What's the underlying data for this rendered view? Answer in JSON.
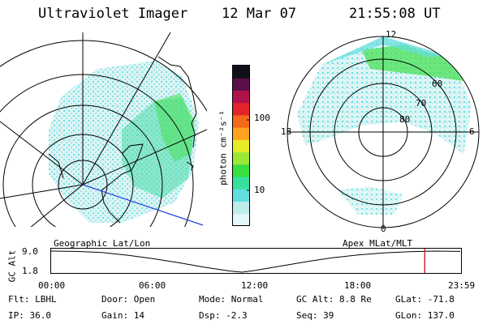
{
  "header": {
    "instrument": "Ultraviolet Imager",
    "date": "12 Mar 07",
    "time": "21:55:08 UT"
  },
  "maps": {
    "left_caption": "Geographic Lat/Lon",
    "right_caption": "Apex MLat/MLT",
    "mlt_labels": {
      "top": "12",
      "left": "18",
      "right": "6",
      "bottom": "0"
    },
    "mlat_labels": [
      "60",
      "70",
      "80"
    ]
  },
  "colorbar": {
    "unit_label": "photon cm⁻²s⁻¹",
    "ticks": [
      "100",
      "10"
    ],
    "scale": "log",
    "colors": [
      "#e6f7f7",
      "#c0ecec",
      "#62dede",
      "#38e0a0",
      "#36e040",
      "#9be836",
      "#e6ec26",
      "#ffa31e",
      "#f26a1a",
      "#e2242a",
      "#b0124a",
      "#5b0f48",
      "#101018"
    ]
  },
  "altitude_plot": {
    "ylabel": "GC Alt",
    "y_ticks": [
      "9.0",
      "1.8"
    ],
    "x_ticks": [
      "00:00",
      "06:00",
      "12:00",
      "18:00",
      "23:59"
    ],
    "curve": [
      {
        "hour": 0.0,
        "alt": 9.0
      },
      {
        "hour": 1.5,
        "alt": 8.9
      },
      {
        "hour": 3.0,
        "alt": 8.5
      },
      {
        "hour": 4.5,
        "alt": 7.6
      },
      {
        "hour": 6.0,
        "alt": 6.4
      },
      {
        "hour": 7.5,
        "alt": 5.0
      },
      {
        "hour": 9.0,
        "alt": 3.5
      },
      {
        "hour": 10.5,
        "alt": 2.2
      },
      {
        "hour": 11.2,
        "alt": 1.8
      },
      {
        "hour": 12.0,
        "alt": 2.4
      },
      {
        "hour": 13.5,
        "alt": 3.9
      },
      {
        "hour": 15.0,
        "alt": 5.4
      },
      {
        "hour": 16.5,
        "alt": 6.7
      },
      {
        "hour": 18.0,
        "alt": 7.7
      },
      {
        "hour": 19.5,
        "alt": 8.4
      },
      {
        "hour": 21.0,
        "alt": 8.8
      },
      {
        "hour": 22.5,
        "alt": 9.0
      },
      {
        "hour": 24.0,
        "alt": 8.9
      }
    ],
    "marker_hour": 21.92,
    "marker_color": "#cc2020"
  },
  "info": {
    "flt": "Flt: LBHL",
    "door": "Door: Open",
    "mode": "Mode: Normal",
    "gcalt": "GC Alt: 8.8 Re",
    "glat": "GLat: -71.8",
    "ip": "IP: 36.0",
    "gain": "Gain: 14",
    "dsp": "Dsp:   -2.3",
    "seq": "Seq: 39",
    "glon": "GLon: 137.0"
  }
}
